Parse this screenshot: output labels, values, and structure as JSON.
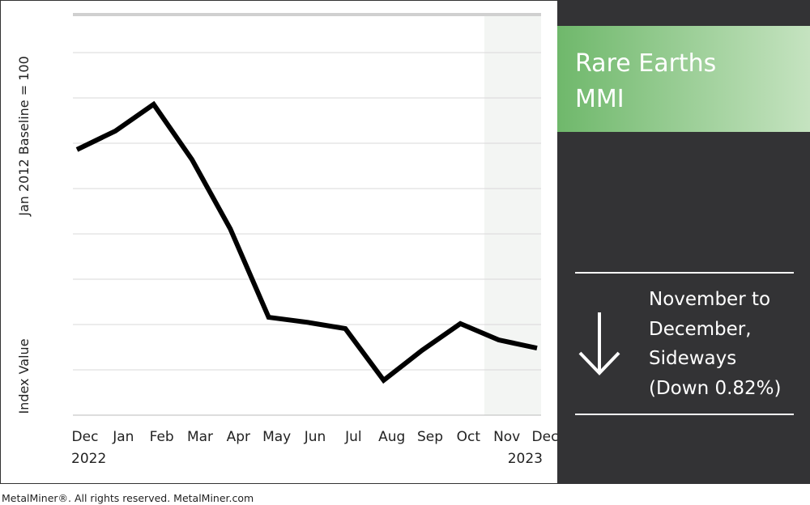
{
  "chart_data": {
    "type": "line",
    "title": [
      "Rare Earths",
      "MMI"
    ],
    "ylabel_top": "Jan 2012 Baseline = 100",
    "ylabel_bottom": "Index Value",
    "summary": [
      "November to",
      "December,",
      "Sideways",
      "(Down 0.82%)"
    ],
    "source": "MetalMiner®. All rights reserved. MetalMiner.com",
    "categories": [
      "Dec",
      "Jan",
      "Feb",
      "Mar",
      "Apr",
      "May",
      "Jun",
      "Jul",
      "Aug",
      "Sep",
      "Oct",
      "Nov",
      "Dec"
    ],
    "start_label": "2022",
    "end_label": "2023",
    "series": [
      {
        "color": "#000000",
        "values": [
          5.86,
          6.27,
          6.86,
          5.64,
          4.11,
          2.16,
          2.05,
          1.91,
          0.77,
          1.43,
          2.02,
          1.66,
          1.48
        ]
      }
    ],
    "ylim": [
      0,
      8.84
    ],
    "yticks": [
      0,
      1,
      2,
      3,
      4,
      5,
      6,
      7,
      8,
      8.84
    ],
    "show_tick_labels": false,
    "grid": true,
    "highlight_start_index": 11
  }
}
